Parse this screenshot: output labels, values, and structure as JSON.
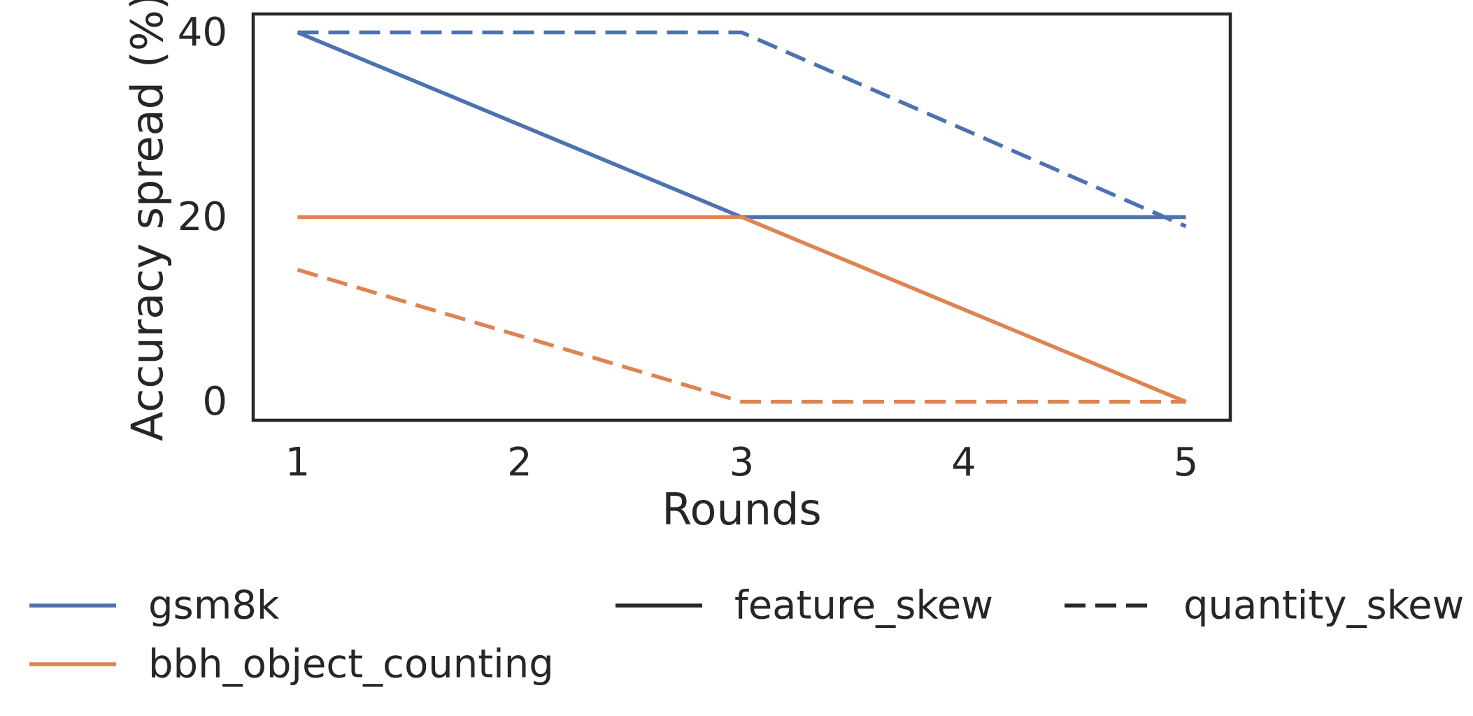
{
  "chart_data": {
    "type": "line",
    "title": "",
    "xlabel": "Rounds",
    "ylabel": "Accuracy spread (%)",
    "x": [
      1,
      3,
      5
    ],
    "xticks": [
      "1",
      "2",
      "3",
      "4",
      "5"
    ],
    "yticks": [
      "0",
      "20",
      "40"
    ],
    "xlim": [
      0.8,
      5.2
    ],
    "ylim": [
      -2,
      42
    ],
    "grid": false,
    "legend_position": "bottom",
    "series": [
      {
        "dataset": "gsm8k",
        "skew": "feature_skew",
        "color": "#4c72b0",
        "dash": "solid",
        "values": [
          40,
          20,
          20
        ]
      },
      {
        "dataset": "gsm8k",
        "skew": "quantity_skew",
        "color": "#4c72b0",
        "dash": "dashed",
        "values": [
          40,
          40,
          19
        ]
      },
      {
        "dataset": "bbh_object_counting",
        "skew": "feature_skew",
        "color": "#dd8452",
        "dash": "solid",
        "values": [
          20,
          20,
          0
        ]
      },
      {
        "dataset": "bbh_object_counting",
        "skew": "quantity_skew",
        "color": "#dd8452",
        "dash": "dashed",
        "values": [
          14.3,
          0,
          0
        ]
      }
    ],
    "legend": {
      "datasets": [
        {
          "label": "gsm8k",
          "color": "#4c72b0"
        },
        {
          "label": "bbh_object_counting",
          "color": "#dd8452"
        }
      ],
      "styles": [
        {
          "label": "feature_skew",
          "dash": "solid"
        },
        {
          "label": "quantity_skew",
          "dash": "dashed"
        }
      ]
    }
  }
}
